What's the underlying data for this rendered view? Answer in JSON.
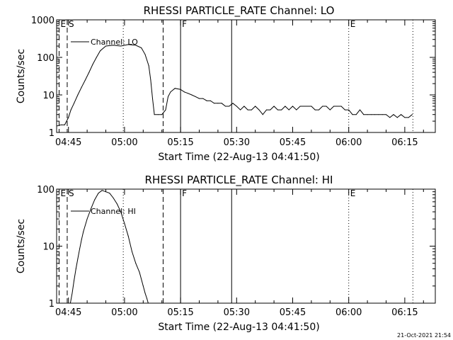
{
  "chart_data": [
    {
      "type": "line",
      "title": "RHESSI PARTICLE_RATE Channel: LO",
      "xlabel": "Start Time (22-Aug-13 04:41:50)",
      "ylabel": "Counts/sec",
      "yscale": "log",
      "ylim": [
        1,
        1000
      ],
      "xlim": [
        "04:41:50",
        "06:23:10"
      ],
      "x_ticks": [
        "04:45",
        "05:00",
        "05:15",
        "05:30",
        "05:45",
        "06:00",
        "06:15"
      ],
      "y_ticks": [
        "1",
        "10",
        "100",
        "1000"
      ],
      "legend": "top-left",
      "series": [
        {
          "name": "Channel: LO",
          "x": [
            "04:42:00",
            "04:43:00",
            "04:44:00",
            "04:45:00",
            "04:45:40",
            "04:46:30",
            "04:47:30",
            "04:48:30",
            "04:49:30",
            "04:50:30",
            "04:51:30",
            "04:52:30",
            "04:53:30",
            "04:55:00",
            "04:57:00",
            "04:59:00",
            "05:01:00",
            "05:03:00",
            "05:04:30",
            "05:05:30",
            "05:06:30",
            "05:07:00",
            "05:07:30",
            "05:08:00",
            "05:09:00",
            "05:10:00",
            "05:11:00",
            "05:11:40",
            "05:12:20",
            "05:13:30",
            "05:15:00",
            "05:16:00",
            "05:17:00",
            "05:18:00",
            "05:19:00",
            "05:20:00",
            "05:21:00",
            "05:22:00",
            "05:23:00",
            "05:24:00",
            "05:25:00",
            "05:26:00",
            "05:27:00",
            "05:28:00",
            "05:29:00",
            "05:30:00",
            "05:31:00",
            "05:32:00",
            "05:33:00",
            "05:34:00",
            "05:35:00",
            "05:36:00",
            "05:37:00",
            "05:38:00",
            "05:39:00",
            "05:40:00",
            "05:41:00",
            "05:42:00",
            "05:43:00",
            "05:44:00",
            "05:45:00",
            "05:46:00",
            "05:47:00",
            "05:48:00",
            "05:49:00",
            "05:50:00",
            "05:51:00",
            "05:52:00",
            "05:53:00",
            "05:54:00",
            "05:55:00",
            "05:56:00",
            "05:57:00",
            "05:58:00",
            "05:59:00",
            "06:00:00",
            "06:01:00",
            "06:02:00",
            "06:03:00",
            "06:04:00",
            "06:05:00",
            "06:06:00",
            "06:07:00",
            "06:08:00",
            "06:09:00",
            "06:10:00",
            "06:11:00",
            "06:12:00",
            "06:13:00",
            "06:14:00",
            "06:15:00",
            "06:16:00",
            "06:17:00"
          ],
          "y": [
            1.5,
            1.6,
            1.6,
            2.5,
            4,
            6,
            10,
            16,
            25,
            40,
            65,
            100,
            150,
            200,
            210,
            200,
            220,
            210,
            180,
            120,
            60,
            25,
            8,
            3,
            3,
            3,
            4,
            9,
            12,
            15,
            14,
            12,
            11,
            10,
            9,
            8,
            8,
            7,
            7,
            6,
            6,
            6,
            5,
            5,
            6,
            5,
            4,
            5,
            4,
            4,
            5,
            4,
            3,
            4,
            4,
            5,
            4,
            4,
            5,
            4,
            5,
            4,
            5,
            5,
            5,
            5,
            4,
            4,
            5,
            5,
            4,
            5,
            5,
            5,
            4,
            4,
            3,
            3,
            4,
            3,
            3,
            3,
            3,
            3,
            3,
            3,
            2.5,
            3,
            2.5,
            3,
            2.5,
            2.5,
            3
          ]
        }
      ],
      "markers": [
        {
          "label": "E",
          "time": "04:42:30",
          "style": "dashed"
        },
        {
          "label": "S",
          "time": "04:44:40",
          "style": "dashed"
        },
        {
          "label": "",
          "time": "05:10:20",
          "style": "dashed"
        },
        {
          "label": "F",
          "time": "05:15:00",
          "style": "solid"
        },
        {
          "label": "",
          "time": "05:28:40",
          "style": "solid"
        },
        {
          "label": "",
          "time": "04:59:40",
          "style": "dotted"
        },
        {
          "label": "E",
          "time": "06:00:00",
          "style": "dotted"
        },
        {
          "label": "",
          "time": "06:17:10",
          "style": "dotted"
        }
      ]
    },
    {
      "type": "line",
      "title": "RHESSI PARTICLE_RATE Channel: HI",
      "xlabel": "Start Time (22-Aug-13 04:41:50)",
      "ylabel": "Counts/sec",
      "yscale": "log",
      "ylim": [
        1,
        100
      ],
      "xlim": [
        "04:41:50",
        "06:23:10"
      ],
      "x_ticks": [
        "04:45",
        "05:00",
        "05:15",
        "05:30",
        "05:45",
        "06:00",
        "06:15"
      ],
      "y_ticks": [
        "1",
        "10",
        "100"
      ],
      "legend": "top-left",
      "series": [
        {
          "name": "Channel: HI",
          "x": [
            "04:45:30",
            "04:46:00",
            "04:46:30",
            "04:47:00",
            "04:47:30",
            "04:48:00",
            "04:48:30",
            "04:49:00",
            "04:50:00",
            "04:51:00",
            "04:52:00",
            "04:53:00",
            "04:54:00",
            "04:55:00",
            "04:56:00",
            "04:57:00",
            "04:58:00",
            "04:59:00",
            "05:00:00",
            "05:01:00",
            "05:02:00",
            "05:03:00",
            "05:04:00",
            "05:05:00",
            "05:05:30",
            "05:06:00",
            "05:06:20"
          ],
          "y": [
            1,
            1.5,
            2.5,
            4,
            6,
            9,
            13,
            18,
            30,
            45,
            65,
            85,
            95,
            90,
            85,
            70,
            55,
            40,
            25,
            15,
            8,
            5,
            3.5,
            2,
            1.5,
            1.2,
            1
          ]
        }
      ],
      "markers": [
        {
          "label": "E",
          "time": "04:42:30",
          "style": "dashed"
        },
        {
          "label": "S",
          "time": "04:44:40",
          "style": "dashed"
        },
        {
          "label": "",
          "time": "05:10:20",
          "style": "dashed"
        },
        {
          "label": "F",
          "time": "05:15:00",
          "style": "solid"
        },
        {
          "label": "",
          "time": "05:28:40",
          "style": "solid"
        },
        {
          "label": "",
          "time": "04:59:40",
          "style": "dotted"
        },
        {
          "label": "E",
          "time": "06:00:00",
          "style": "dotted"
        },
        {
          "label": "",
          "time": "06:17:10",
          "style": "dotted"
        }
      ]
    }
  ],
  "timestamp": "21-Oct-2021 21:54"
}
